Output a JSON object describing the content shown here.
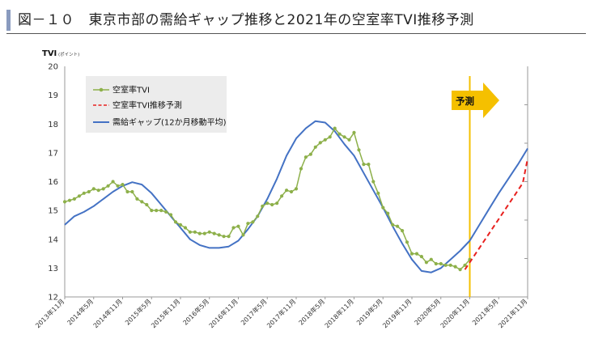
{
  "header": {
    "title": "図－１０　東京市部の需給ギャップ推移と2021年の空室率TVI推移予測"
  },
  "chart_data": {
    "type": "line",
    "ylabel": "TVI",
    "yunit": "(ポイント)",
    "ylim": [
      12,
      20
    ],
    "yticks": [
      12,
      13,
      14,
      15,
      16,
      17,
      18,
      19,
      20
    ],
    "xlim": [
      "2013-11",
      "2021-11"
    ],
    "xticks": [
      "2013年11月",
      "2014年5月",
      "2014年11月",
      "2015年5月",
      "2015年11月",
      "2016年5月",
      "2016年11月",
      "2017年5月",
      "2017年11月",
      "2018年5月",
      "2018年11月",
      "2019年5月",
      "2019年11月",
      "2020年5月",
      "2020年11月",
      "2021年5月",
      "2021年11月"
    ],
    "forecast_start": "2020-11",
    "annotation": "予測",
    "legend_position": "top-left",
    "colors": {
      "tvi": "#8db04a",
      "forecast": "#e8201e",
      "gap": "#4472c4",
      "divider": "#f5c000",
      "arrow": "#f5c000"
    },
    "series": [
      {
        "name": "空室率TVI",
        "style": "line-with-markers",
        "x": [
          "2013-11",
          "2013-12",
          "2014-01",
          "2014-02",
          "2014-03",
          "2014-04",
          "2014-05",
          "2014-06",
          "2014-07",
          "2014-08",
          "2014-09",
          "2014-10",
          "2014-11",
          "2014-12",
          "2015-01",
          "2015-02",
          "2015-03",
          "2015-04",
          "2015-05",
          "2015-06",
          "2015-07",
          "2015-08",
          "2015-09",
          "2015-10",
          "2015-11",
          "2015-12",
          "2016-01",
          "2016-02",
          "2016-03",
          "2016-04",
          "2016-05",
          "2016-06",
          "2016-07",
          "2016-08",
          "2016-09",
          "2016-10",
          "2016-11",
          "2016-12",
          "2017-01",
          "2017-02",
          "2017-03",
          "2017-04",
          "2017-05",
          "2017-06",
          "2017-07",
          "2017-08",
          "2017-09",
          "2017-10",
          "2017-11",
          "2017-12",
          "2018-01",
          "2018-02",
          "2018-03",
          "2018-04",
          "2018-05",
          "2018-06",
          "2018-07",
          "2018-08",
          "2018-09",
          "2018-10",
          "2018-11",
          "2018-12",
          "2019-01",
          "2019-02",
          "2019-03",
          "2019-04",
          "2019-05",
          "2019-06",
          "2019-07",
          "2019-08",
          "2019-09",
          "2019-10",
          "2019-11",
          "2019-12",
          "2020-01",
          "2020-02",
          "2020-03",
          "2020-04",
          "2020-05",
          "2020-06",
          "2020-07",
          "2020-08",
          "2020-09",
          "2020-10",
          "2020-11"
        ],
        "y": [
          15.3,
          15.35,
          15.4,
          15.5,
          15.6,
          15.65,
          15.75,
          15.7,
          15.75,
          15.85,
          16.0,
          15.85,
          15.9,
          15.65,
          15.65,
          15.4,
          15.3,
          15.2,
          15.0,
          15.0,
          15.0,
          14.95,
          14.85,
          14.6,
          14.5,
          14.4,
          14.25,
          14.25,
          14.2,
          14.2,
          14.25,
          14.2,
          14.15,
          14.1,
          14.1,
          14.4,
          14.45,
          14.15,
          14.55,
          14.6,
          14.8,
          15.15,
          15.25,
          15.2,
          15.25,
          15.5,
          15.7,
          15.65,
          15.75,
          16.45,
          16.85,
          16.95,
          17.2,
          17.35,
          17.45,
          17.55,
          17.85,
          17.65,
          17.55,
          17.45,
          17.7,
          17.1,
          16.6,
          16.6,
          16.0,
          15.6,
          15.1,
          14.9,
          14.5,
          14.45,
          14.3,
          13.9,
          13.5,
          13.5,
          13.4,
          13.2,
          13.3,
          13.15,
          13.15,
          13.1,
          13.1,
          13.05,
          12.95,
          13.1,
          13.3
        ]
      },
      {
        "name": "空室率TVI推移予測",
        "style": "dashed",
        "x": [
          "2020-10",
          "2020-12",
          "2021-02",
          "2021-04",
          "2021-06",
          "2021-08",
          "2021-10",
          "2021-11"
        ],
        "y": [
          12.95,
          13.45,
          13.95,
          14.45,
          14.95,
          15.45,
          15.95,
          16.8
        ]
      },
      {
        "name": "需給ギャップ(12か月移動平均)",
        "style": "line",
        "x": [
          "2013-11",
          "2014-01",
          "2014-03",
          "2014-05",
          "2014-07",
          "2014-09",
          "2014-11",
          "2015-01",
          "2015-03",
          "2015-05",
          "2015-07",
          "2015-09",
          "2015-11",
          "2016-01",
          "2016-03",
          "2016-05",
          "2016-07",
          "2016-09",
          "2016-11",
          "2017-01",
          "2017-03",
          "2017-05",
          "2017-07",
          "2017-09",
          "2017-11",
          "2018-01",
          "2018-03",
          "2018-05",
          "2018-07",
          "2018-09",
          "2018-11",
          "2019-01",
          "2019-03",
          "2019-05",
          "2019-07",
          "2019-09",
          "2019-11",
          "2020-01",
          "2020-03",
          "2020-05",
          "2020-07",
          "2020-09",
          "2020-11",
          "2021-01",
          "2021-03",
          "2021-05",
          "2021-07",
          "2021-09",
          "2021-11"
        ],
        "y": [
          14.5,
          14.8,
          14.95,
          15.15,
          15.4,
          15.65,
          15.85,
          15.98,
          15.9,
          15.6,
          15.2,
          14.8,
          14.4,
          14.0,
          13.8,
          13.7,
          13.7,
          13.75,
          13.95,
          14.35,
          14.8,
          15.4,
          16.1,
          16.9,
          17.5,
          17.85,
          18.1,
          18.05,
          17.75,
          17.3,
          16.9,
          16.3,
          15.7,
          15.1,
          14.45,
          13.85,
          13.3,
          12.9,
          12.85,
          13.0,
          13.3,
          13.6,
          13.95,
          14.5,
          15.05,
          15.6,
          16.1,
          16.6,
          17.15
        ]
      }
    ]
  }
}
